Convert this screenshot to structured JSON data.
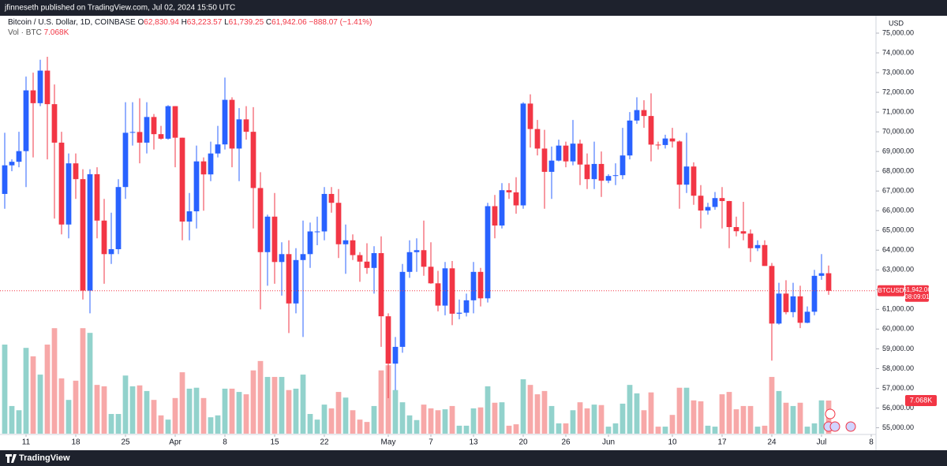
{
  "header": {
    "text": "jfinneseth published on TradingView.com, Jul 02, 2024 15:50 UTC"
  },
  "footer": {
    "brand": "TradingView"
  },
  "chart_data": {
    "type": "candlestick",
    "legend": {
      "title": "Bitcoin / U.S. Dollar, 1D, COINBASE",
      "letters": [
        "O",
        "H",
        "L",
        "C"
      ],
      "last": [
        "62,830.94",
        "63,223.57",
        "61,739.25",
        "61,942.06"
      ],
      "change": "−888.07 (−1.41%)",
      "volume_name": "Vol · BTC",
      "volume_last": "7.068K"
    },
    "currency": "USD",
    "symbol": "BTCUSD",
    "countdown": "08:09:01",
    "up_color": "#2962ff",
    "down_color": "#f23645",
    "volume_up_color": "#92d2cc",
    "volume_down_color": "#f7a8a8",
    "xlim": [
      "2024-03-07",
      "2024-07-10"
    ],
    "xticks": [
      {
        "value": "2024-03-11",
        "label": "11"
      },
      {
        "value": "2024-03-18",
        "label": "18"
      },
      {
        "value": "2024-03-25",
        "label": "25"
      },
      {
        "value": "2024-04-01",
        "label": "Apr"
      },
      {
        "value": "2024-04-08",
        "label": "8"
      },
      {
        "value": "2024-04-15",
        "label": "15"
      },
      {
        "value": "2024-04-22",
        "label": "22"
      },
      {
        "value": "2024-05-01",
        "label": "May"
      },
      {
        "value": "2024-05-07",
        "label": "7"
      },
      {
        "value": "2024-05-13",
        "label": "13"
      },
      {
        "value": "2024-05-20",
        "label": "20"
      },
      {
        "value": "2024-05-26",
        "label": "26"
      },
      {
        "value": "2024-06-01",
        "label": "Jun"
      },
      {
        "value": "2024-06-10",
        "label": "10"
      },
      {
        "value": "2024-06-17",
        "label": "17"
      },
      {
        "value": "2024-06-24",
        "label": "24"
      },
      {
        "value": "2024-07-01",
        "label": "Jul"
      },
      {
        "value": "2024-07-08",
        "label": "8"
      }
    ],
    "ylim": [
      54700,
      75800
    ],
    "yticks": [
      {
        "value": 55000,
        "label": "55,000.00"
      },
      {
        "value": 56000,
        "label": "56,000.00"
      },
      {
        "value": 57000,
        "label": "57,000.00"
      },
      {
        "value": 58000,
        "label": "58,000.00"
      },
      {
        "value": 59000,
        "label": "59,000.00"
      },
      {
        "value": 60000,
        "label": "60,000.00"
      },
      {
        "value": 61000,
        "label": "61,000.00"
      },
      {
        "value": 62000,
        "label": "62,000.00"
      },
      {
        "value": 63000,
        "label": "63,000.00"
      },
      {
        "value": 64000,
        "label": "64,000.00"
      },
      {
        "value": 65000,
        "label": "65,000.00"
      },
      {
        "value": 66000,
        "label": "66,000.00"
      },
      {
        "value": 67000,
        "label": "67,000.00"
      },
      {
        "value": 68000,
        "label": "68,000.00"
      },
      {
        "value": 69000,
        "label": "69,000.00"
      },
      {
        "value": 70000,
        "label": "70,000.00"
      },
      {
        "value": 71000,
        "label": "71,000.00"
      },
      {
        "value": 72000,
        "label": "72,000.00"
      },
      {
        "value": 73000,
        "label": "73,000.00"
      },
      {
        "value": 74000,
        "label": "74,000.00"
      },
      {
        "value": 75000,
        "label": "75,000.00"
      }
    ],
    "y2lim": [
      0,
      88800
    ],
    "x": [
      "2024-03-08",
      "2024-03-09",
      "2024-03-10",
      "2024-03-11",
      "2024-03-12",
      "2024-03-13",
      "2024-03-14",
      "2024-03-15",
      "2024-03-16",
      "2024-03-17",
      "2024-03-18",
      "2024-03-19",
      "2024-03-20",
      "2024-03-21",
      "2024-03-22",
      "2024-03-23",
      "2024-03-24",
      "2024-03-25",
      "2024-03-26",
      "2024-03-27",
      "2024-03-28",
      "2024-03-29",
      "2024-03-30",
      "2024-03-31",
      "2024-04-01",
      "2024-04-02",
      "2024-04-03",
      "2024-04-04",
      "2024-04-05",
      "2024-04-06",
      "2024-04-07",
      "2024-04-08",
      "2024-04-09",
      "2024-04-10",
      "2024-04-11",
      "2024-04-12",
      "2024-04-13",
      "2024-04-14",
      "2024-04-15",
      "2024-04-16",
      "2024-04-17",
      "2024-04-18",
      "2024-04-19",
      "2024-04-20",
      "2024-04-21",
      "2024-04-22",
      "2024-04-23",
      "2024-04-24",
      "2024-04-25",
      "2024-04-26",
      "2024-04-27",
      "2024-04-28",
      "2024-04-29",
      "2024-04-30",
      "2024-05-01",
      "2024-05-02",
      "2024-05-03",
      "2024-05-04",
      "2024-05-05",
      "2024-05-06",
      "2024-05-07",
      "2024-05-08",
      "2024-05-09",
      "2024-05-10",
      "2024-05-11",
      "2024-05-12",
      "2024-05-13",
      "2024-05-14",
      "2024-05-15",
      "2024-05-16",
      "2024-05-17",
      "2024-05-18",
      "2024-05-19",
      "2024-05-20",
      "2024-05-21",
      "2024-05-22",
      "2024-05-23",
      "2024-05-24",
      "2024-05-25",
      "2024-05-26",
      "2024-05-27",
      "2024-05-28",
      "2024-05-29",
      "2024-05-30",
      "2024-05-31",
      "2024-06-01",
      "2024-06-02",
      "2024-06-03",
      "2024-06-04",
      "2024-06-05",
      "2024-06-06",
      "2024-06-07",
      "2024-06-08",
      "2024-06-09",
      "2024-06-10",
      "2024-06-11",
      "2024-06-12",
      "2024-06-13",
      "2024-06-14",
      "2024-06-15",
      "2024-06-16",
      "2024-06-17",
      "2024-06-18",
      "2024-06-19",
      "2024-06-20",
      "2024-06-21",
      "2024-06-22",
      "2024-06-23",
      "2024-06-24",
      "2024-06-25",
      "2024-06-26",
      "2024-06-27",
      "2024-06-28",
      "2024-06-29",
      "2024-06-30",
      "2024-07-01",
      "2024-07-02"
    ],
    "open": [
      66850,
      68300,
      68480,
      69020,
      72100,
      71450,
      73100,
      71400,
      69450,
      65300,
      68400,
      67600,
      61950,
      67850,
      65500,
      63800,
      64050,
      67200,
      69950,
      69990,
      69450,
      70750,
      69880,
      69650,
      71300,
      69700,
      65450,
      65970,
      68500,
      67840,
      68900,
      69360,
      71620,
      69150,
      70630,
      70000,
      67150,
      63900,
      65700,
      63400,
      63800,
      61300,
      63500,
      63800,
      64950,
      64950,
      66850,
      66400,
      64300,
      64500,
      63750,
      63420,
      63100,
      63850,
      60650,
      58250,
      59100,
      62900,
      63900,
      64000,
      63160,
      62320,
      61190,
      63080,
      60780,
      60830,
      61460,
      62900,
      61560,
      66230,
      65250,
      67040,
      66930,
      66270,
      71430,
      70140,
      69150,
      67970,
      68540,
      69300,
      68500,
      69400,
      68340,
      67600,
      68370,
      67520,
      67760,
      67800,
      68800,
      70570,
      71100,
      70800,
      69350,
      69330,
      69660,
      69510,
      67320,
      68240,
      66760,
      66010,
      66190,
      66640,
      66490,
      65170,
      64960,
      64840,
      64100,
      64260,
      63200,
      60280,
      61800,
      60860,
      61660,
      60320,
      60880,
      62700,
      62830.94
    ],
    "high": [
      69950,
      68600,
      70000,
      72800,
      73000,
      73650,
      73800,
      72400,
      70000,
      68900,
      68900,
      68100,
      68100,
      68200,
      66600,
      65900,
      67600,
      71500,
      71500,
      71700,
      71500,
      70900,
      70300,
      71350,
      71300,
      69700,
      66900,
      69300,
      68700,
      69500,
      70300,
      72750,
      71750,
      71200,
      71300,
      71250,
      67950,
      65800,
      66900,
      64400,
      64500,
      64100,
      65500,
      65400,
      65700,
      67200,
      67200,
      67100,
      65300,
      64800,
      63900,
      64350,
      64200,
      64700,
      60800,
      59600,
      63300,
      64500,
      64600,
      65500,
      64400,
      62950,
      63400,
      63450,
      61500,
      61800,
      63400,
      63100,
      66400,
      66800,
      67400,
      67400,
      67700,
      71500,
      71900,
      70600,
      70100,
      69250,
      69600,
      69500,
      70600,
      69600,
      68900,
      69500,
      69000,
      67850,
      68400,
      70200,
      71000,
      71750,
      71600,
      71950,
      69500,
      69850,
      70200,
      69560,
      69950,
      68450,
      67300,
      66400,
      66950,
      67200,
      66500,
      65700,
      66450,
      65050,
      64500,
      64500,
      63350,
      62350,
      62480,
      62350,
      62200,
      61150,
      63000,
      63800,
      63223.57
    ],
    "low": [
      66100,
      68000,
      68200,
      67200,
      68700,
      71300,
      68600,
      65600,
      64800,
      64600,
      66600,
      61500,
      60800,
      64600,
      62300,
      63300,
      63800,
      66600,
      69300,
      68400,
      68900,
      69100,
      69600,
      69600,
      68200,
      64500,
      64500,
      65100,
      66000,
      67500,
      68700,
      69100,
      68200,
      67500,
      69600,
      65100,
      61000,
      62200,
      62300,
      61700,
      59800,
      60800,
      59600,
      63100,
      64250,
      64500,
      65900,
      63600,
      62800,
      63500,
      62400,
      62800,
      61800,
      59100,
      56500,
      56900,
      58800,
      62600,
      62900,
      62700,
      62300,
      60900,
      60700,
      60200,
      60500,
      60640,
      60800,
      61150,
      61350,
      64600,
      65100,
      66600,
      65850,
      66100,
      69200,
      68800,
      66100,
      66600,
      68500,
      68200,
      68300,
      67300,
      67100,
      67100,
      66700,
      67400,
      67300,
      67600,
      68600,
      70400,
      70200,
      68500,
      69100,
      69150,
      69200,
      66100,
      66900,
      66300,
      65100,
      65800,
      66050,
      65100,
      64100,
      64700,
      64500,
      63400,
      63950,
      63200,
      58400,
      60230,
      60750,
      60600,
      60050,
      60300,
      60700,
      62500,
      61739.25
    ],
    "close": [
      68300,
      68480,
      69020,
      72100,
      71450,
      73100,
      71400,
      69450,
      65300,
      68400,
      67600,
      61950,
      67850,
      65500,
      63800,
      64050,
      67200,
      69950,
      69990,
      69450,
      70750,
      69880,
      69650,
      71300,
      69700,
      65450,
      65970,
      68500,
      67840,
      68900,
      69360,
      71620,
      69150,
      70630,
      70000,
      67150,
      63900,
      65700,
      63400,
      63800,
      61300,
      63500,
      63800,
      64950,
      64950,
      66850,
      66400,
      64300,
      64500,
      63750,
      63420,
      63100,
      63850,
      60650,
      58250,
      59100,
      62900,
      63900,
      64000,
      63160,
      62320,
      61190,
      63080,
      60780,
      60830,
      61460,
      62900,
      61560,
      66230,
      65250,
      67040,
      66930,
      66270,
      71430,
      70140,
      69150,
      67970,
      68540,
      69300,
      68500,
      69400,
      68340,
      67600,
      68370,
      67520,
      67760,
      67800,
      68800,
      70570,
      71100,
      70800,
      69350,
      69330,
      69660,
      69510,
      67320,
      68240,
      66760,
      66010,
      66190,
      66640,
      66490,
      65170,
      64960,
      64840,
      64100,
      64260,
      63200,
      60280,
      61800,
      60860,
      61660,
      60320,
      60880,
      62700,
      62830.13,
      61942.06
    ],
    "volume": [
      19000,
      5900,
      5000,
      18300,
      16500,
      12600,
      19000,
      22500,
      11800,
      7200,
      11300,
      22500,
      21500,
      10400,
      10100,
      4200,
      4200,
      12400,
      10100,
      10300,
      9100,
      7200,
      3900,
      3000,
      7600,
      13100,
      9600,
      9800,
      7600,
      3500,
      3900,
      9600,
      9600,
      8900,
      8400,
      13500,
      15500,
      12100,
      12100,
      12100,
      9300,
      9600,
      12600,
      4200,
      3000,
      6200,
      5400,
      8900,
      7700,
      5000,
      3000,
      2500,
      5900,
      13500,
      14600,
      9300,
      6700,
      3900,
      2900,
      6200,
      5400,
      5000,
      5200,
      5900,
      1700,
      1700,
      5400,
      5600,
      10100,
      6600,
      6700,
      1700,
      2000,
      11600,
      10400,
      8400,
      9100,
      5900,
      2200,
      2200,
      5000,
      6700,
      5400,
      6200,
      6100,
      1500,
      2200,
      6400,
      10400,
      8600,
      5000,
      8800,
      1500,
      1500,
      4000,
      9800,
      9800,
      7100,
      6900,
      1700,
      1500,
      8400,
      8900,
      5200,
      5900,
      5900,
      1500,
      1700,
      12100,
      9100,
      6600,
      5900,
      6600,
      1500,
      2200,
      7100,
      7068
    ]
  }
}
